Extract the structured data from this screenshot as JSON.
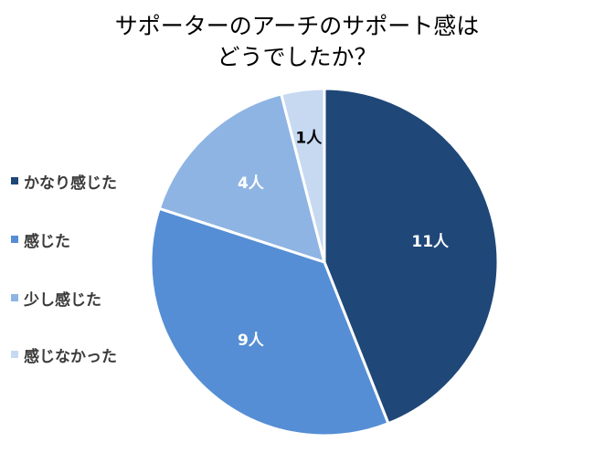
{
  "chart_data": {
    "type": "pie",
    "title_lines": [
      "サポーターのアーチのサポート感は",
      "どうでしたか？"
    ],
    "categories": [
      "かなり感じた",
      "感じた",
      "少し感じた",
      "感じなかった"
    ],
    "values": [
      11,
      9,
      4,
      1
    ],
    "data_labels": [
      "11人",
      "9人",
      "4人",
      "1人"
    ],
    "colors": [
      "#1f4778",
      "#558ed5",
      "#8eb4e3",
      "#c6d9f1"
    ],
    "label_colors": [
      "#ffffff",
      "#ffffff",
      "#ffffff",
      "#000000"
    ],
    "legend_position": "left",
    "start_angle_deg": 0,
    "direction": "clockwise"
  }
}
